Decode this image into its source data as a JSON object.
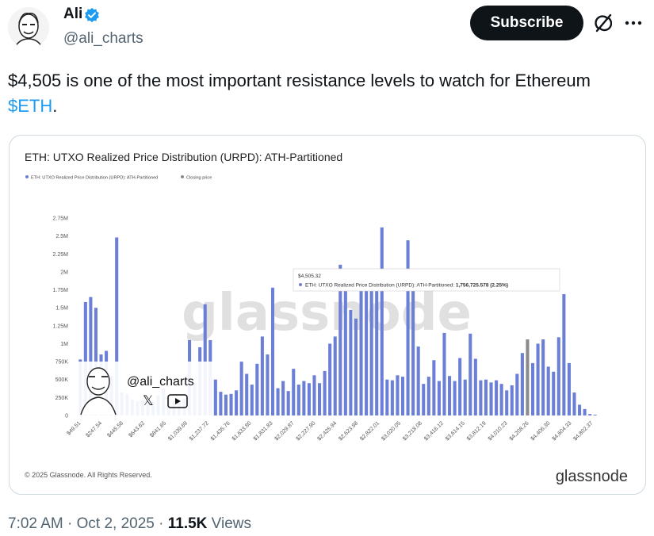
{
  "author": {
    "name": "Ali",
    "handle": "@ali_charts",
    "avatar_icon": "cartoon-face-avatar",
    "verified_icon": "verified-badge-icon",
    "verified_color": "#1d9bf0"
  },
  "header": {
    "subscribe_label": "Subscribe",
    "grok_icon": "grok-icon",
    "more_icon": "more-dots-icon"
  },
  "tweet": {
    "text_before": "$4,505 is one of the most important resistance levels to watch for Ethereum ",
    "cashtag": "$ETH",
    "text_after": ".",
    "link_color": "#1d9bf0"
  },
  "footer": {
    "time": "7:02 AM",
    "date": "Oct 2, 2025",
    "views_count": "11.5K",
    "views_label": "Views"
  },
  "media": {
    "watermark": "glassnode",
    "copyright": "© 2025 Glassnode. All Rights Reserved.",
    "brand": "glassnode",
    "overlay_handle": "@ali_charts"
  },
  "chart_data": {
    "type": "bar",
    "title": "ETH: UTXO Realized Price Distribution (URPD): ATH-Partitioned",
    "legend": [
      {
        "label": "ETH: UTXO Realized Price Distribution (URPD): ATH-Partitioned",
        "color": "#6b7fd7"
      },
      {
        "label": "Closing price",
        "color": "#8a8a8a"
      }
    ],
    "legend_placement": "top-left",
    "grid": false,
    "ylim": [
      0,
      2750000
    ],
    "y_ticks": [
      "0",
      "250K",
      "500K",
      "750K",
      "1M",
      "1.25M",
      "1.5M",
      "1.75M",
      "2M",
      "2.25M",
      "2.5M",
      "2.75M"
    ],
    "x_tick_labels": [
      "$49.51",
      "$247.54",
      "$445.58",
      "$643.62",
      "$841.65",
      "$1,039.69",
      "$1,237.72",
      "$1,435.76",
      "$1,633.80",
      "$1,831.83",
      "$2,029.87",
      "$2,227.90",
      "$2,425.94",
      "$2,623.98",
      "$2,822.01",
      "$3,020.05",
      "$3,218.08",
      "$3,416.12",
      "$3,614.15",
      "$3,812.19",
      "$4,010.23",
      "$4,208.26",
      "$4,406.30",
      "$4,604.33",
      "$4,802.37"
    ],
    "values": [
      780000,
      1580000,
      1650000,
      1500000,
      850000,
      900000,
      550000,
      2480000,
      320000,
      300000,
      220000,
      200000,
      220000,
      180000,
      200000,
      280000,
      380000,
      280000,
      200000,
      180000,
      230000,
      1050000,
      450000,
      950000,
      1550000,
      1050000,
      500000,
      330000,
      290000,
      300000,
      350000,
      750000,
      580000,
      430000,
      720000,
      1100000,
      850000,
      1780000,
      380000,
      480000,
      340000,
      650000,
      430000,
      480000,
      450000,
      560000,
      450000,
      620000,
      1000000,
      1100000,
      2100000,
      1800000,
      1470000,
      1350000,
      2000000,
      1850000,
      1800000,
      1900000,
      2620000,
      500000,
      490000,
      560000,
      540000,
      2440000,
      1750000,
      960000,
      440000,
      540000,
      770000,
      480000,
      1150000,
      550000,
      480000,
      800000,
      500000,
      1140000,
      790000,
      490000,
      500000,
      460000,
      490000,
      440000,
      350000,
      420000,
      580000,
      870000,
      1060000,
      730000,
      1000000,
      1060000,
      680000,
      610000,
      1090000,
      1690000,
      730000,
      320000,
      150000,
      90000,
      20000,
      10000
    ],
    "closing_price_index": 86,
    "tooltip": {
      "price": "$4,505.32",
      "series": "ETH: UTXO Realized Price Distribution (URPD): ATH-Partitioned:",
      "value": "1,756,725.578 (2.25%)"
    }
  }
}
